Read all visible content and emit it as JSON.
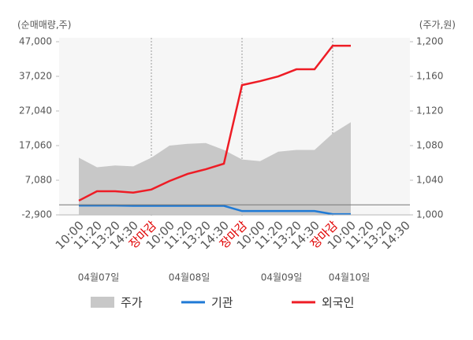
{
  "chart_data": {
    "type": "line",
    "left_unit": "(순매매량,주)",
    "right_unit": "(주가,원)",
    "categories": [
      "10:00",
      "11:20",
      "13:20",
      "14:30",
      "장마감",
      "10:00",
      "11:20",
      "13:20",
      "14:30",
      "장마감",
      "10:00",
      "11:20",
      "13:20",
      "14:30",
      "장마감",
      "10:00",
      "11:20",
      "13:20",
      "14:30"
    ],
    "day_labels": [
      "04월07일",
      "04월08일",
      "04월09일",
      "04월10일"
    ],
    "ylim": [
      -2900,
      47000
    ],
    "yticks": [
      {
        "value": -2900,
        "label": "-2,900"
      },
      {
        "value": 7080,
        "label": "7,080"
      },
      {
        "value": 17060,
        "label": "17,060"
      },
      {
        "value": 27040,
        "label": "27,040"
      },
      {
        "value": 37020,
        "label": "37,020"
      },
      {
        "value": 47000,
        "label": "47,000"
      }
    ],
    "y2lim": [
      1000,
      1200
    ],
    "y2ticks": [
      {
        "value": 1000,
        "label": "1,000"
      },
      {
        "value": 1040,
        "label": "1,040"
      },
      {
        "value": 1080,
        "label": "1,080"
      },
      {
        "value": 1120,
        "label": "1,120"
      },
      {
        "value": 1160,
        "label": "1,160"
      },
      {
        "value": 1200,
        "label": "1,200"
      }
    ],
    "series": [
      {
        "name": "주가",
        "color": "#c8c8c8",
        "kind": "area",
        "axis": "y2",
        "values": [
          1066,
          1055,
          1057,
          1056,
          1066,
          1080,
          1082,
          1083,
          1075,
          1064,
          1062,
          1073,
          1075,
          1075,
          1094,
          1107,
          null,
          null,
          null
        ]
      },
      {
        "name": "기관",
        "color": "#1f7ad6",
        "kind": "line",
        "values": [
          -200,
          -200,
          -200,
          -300,
          -300,
          -300,
          -300,
          -300,
          -300,
          -1800,
          -1800,
          -1800,
          -1800,
          -1800,
          -2700,
          -2700,
          null,
          null,
          null
        ]
      },
      {
        "name": "외국인",
        "color": "#ee1c25",
        "kind": "line",
        "values": [
          1200,
          3900,
          3900,
          3500,
          4400,
          6850,
          8900,
          10250,
          11850,
          34500,
          35650,
          37000,
          39050,
          39050,
          45850,
          45850,
          null,
          null,
          null
        ]
      }
    ]
  }
}
